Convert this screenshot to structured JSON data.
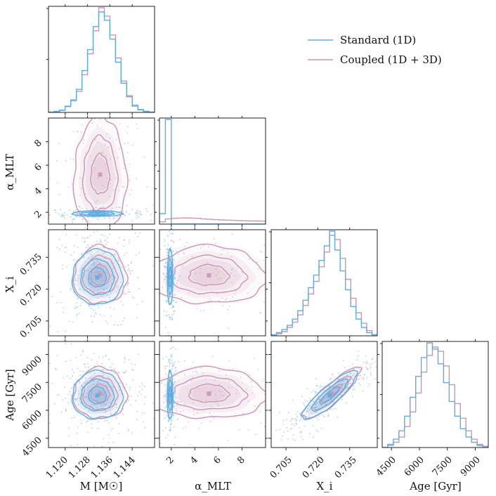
{
  "chart_data": {
    "type": "corner",
    "title": "",
    "colors": {
      "standard": "#5DADE2",
      "coupled": "#C996B3"
    },
    "legend": {
      "placement": "top-right",
      "entries": [
        {
          "name": "Standard (1D)",
          "color": "#5DADE2"
        },
        {
          "name": "Coupled (1D + 3D)",
          "color": "#C996B3"
        }
      ]
    },
    "parameters": [
      {
        "key": "M",
        "label": "M [M☉]",
        "range": [
          1.114,
          1.152
        ],
        "ticks": [
          1.12,
          1.128,
          1.136,
          1.144
        ],
        "tick_labels": [
          "1.120",
          "1.128",
          "1.136",
          "1.144"
        ]
      },
      {
        "key": "alpha",
        "label": "α_MLT",
        "range": [
          1.0,
          10.0
        ],
        "ticks": [
          2,
          4,
          6,
          8
        ],
        "tick_labels": [
          "2",
          "4",
          "6",
          "8"
        ]
      },
      {
        "key": "X",
        "label": "X_i",
        "range": [
          0.698,
          0.748
        ],
        "ticks": [
          0.705,
          0.72,
          0.735
        ],
        "tick_labels": [
          "0.705",
          "0.720",
          "0.735"
        ]
      },
      {
        "key": "Age",
        "label": "Age [Gyr]",
        "range": [
          4000,
          9700
        ],
        "ticks": [
          4500,
          6000,
          7500,
          9000
        ],
        "tick_labels": [
          "4500",
          "6000",
          "7500",
          "9000"
        ]
      }
    ],
    "histograms": {
      "M": {
        "bin_edges": [
          1.114,
          1.116,
          1.118,
          1.12,
          1.122,
          1.124,
          1.126,
          1.128,
          1.13,
          1.132,
          1.134,
          1.136,
          1.138,
          1.14,
          1.142,
          1.144,
          1.146,
          1.148,
          1.15,
          1.152
        ],
        "standard": [
          0.3,
          1.0,
          2.2,
          6.0,
          12.0,
          22.0,
          40.0,
          60.0,
          82.0,
          96.0,
          88.0,
          70.0,
          48.0,
          28.0,
          15.0,
          6.0,
          2.5,
          1.0,
          0.3
        ],
        "coupled": [
          0.3,
          0.8,
          2.0,
          5.5,
          11.0,
          20.0,
          36.0,
          56.0,
          78.0,
          100.0,
          92.0,
          74.0,
          52.0,
          30.0,
          16.0,
          7.0,
          2.8,
          1.0,
          0.3
        ]
      },
      "alpha": {
        "bin_edges": [
          1.0,
          1.5,
          2.0,
          2.5,
          3.0,
          3.5,
          4.0,
          4.5,
          5.0,
          5.5,
          6.0,
          6.5,
          7.0,
          7.5,
          8.0,
          8.5,
          9.0,
          9.5,
          10.0
        ],
        "standard": [
          10.0,
          100.0,
          0,
          0,
          0,
          0,
          0,
          0,
          0,
          0,
          0,
          0,
          0,
          0,
          0,
          0,
          0,
          0
        ],
        "coupled": [
          2.2,
          5.0,
          5.5,
          5.8,
          5.9,
          5.8,
          5.5,
          5.0,
          4.6,
          4.3,
          4.0,
          3.8,
          3.6,
          3.4,
          3.2,
          3.1,
          3.0,
          2.9
        ]
      },
      "X": {
        "bin_edges": [
          0.698,
          0.7005,
          0.703,
          0.7055,
          0.708,
          0.7105,
          0.713,
          0.7155,
          0.718,
          0.7205,
          0.723,
          0.7255,
          0.728,
          0.7305,
          0.733,
          0.7355,
          0.738,
          0.7405,
          0.743,
          0.7455,
          0.748
        ],
        "standard": [
          1,
          3,
          6,
          10,
          16,
          24,
          34,
          46,
          58,
          72,
          86,
          100,
          82,
          62,
          44,
          28,
          16,
          8,
          3,
          1
        ],
        "coupled": [
          1,
          2,
          4,
          8,
          13,
          20,
          29,
          40,
          52,
          66,
          80,
          96,
          92,
          74,
          54,
          36,
          22,
          12,
          5,
          1
        ]
      },
      "Age": {
        "bin_edges": [
          4000,
          4300,
          4600,
          4900,
          5200,
          5500,
          5800,
          6100,
          6400,
          6700,
          7000,
          7300,
          7600,
          7900,
          8200,
          8500,
          8800,
          9100,
          9400,
          9700
        ],
        "standard": [
          0,
          3,
          8,
          16,
          30,
          48,
          68,
          86,
          100,
          94,
          80,
          62,
          44,
          30,
          18,
          10,
          5,
          2,
          1
        ],
        "coupled": [
          0,
          2,
          5,
          10,
          20,
          34,
          52,
          72,
          88,
          96,
          92,
          78,
          60,
          42,
          28,
          16,
          8,
          3,
          1
        ]
      }
    },
    "posteriors_2d": {
      "standard": {
        "mean": {
          "M": 1.1315,
          "alpha": 1.9,
          "X": 0.7255,
          "Age": 6800
        },
        "sd": {
          "M": 0.0045,
          "alpha": 0.12,
          "X": 0.0065,
          "Age": 650
        },
        "corr_X_Age": 0.88
      },
      "coupled": {
        "mean": {
          "M": 1.1325,
          "alpha": 5.2,
          "X": 0.7265,
          "Age": 6900
        },
        "sd": {
          "M": 0.0047,
          "alpha": 2.4,
          "X": 0.0068,
          "Age": 680
        },
        "corr_X_Age": 0.88
      }
    }
  }
}
